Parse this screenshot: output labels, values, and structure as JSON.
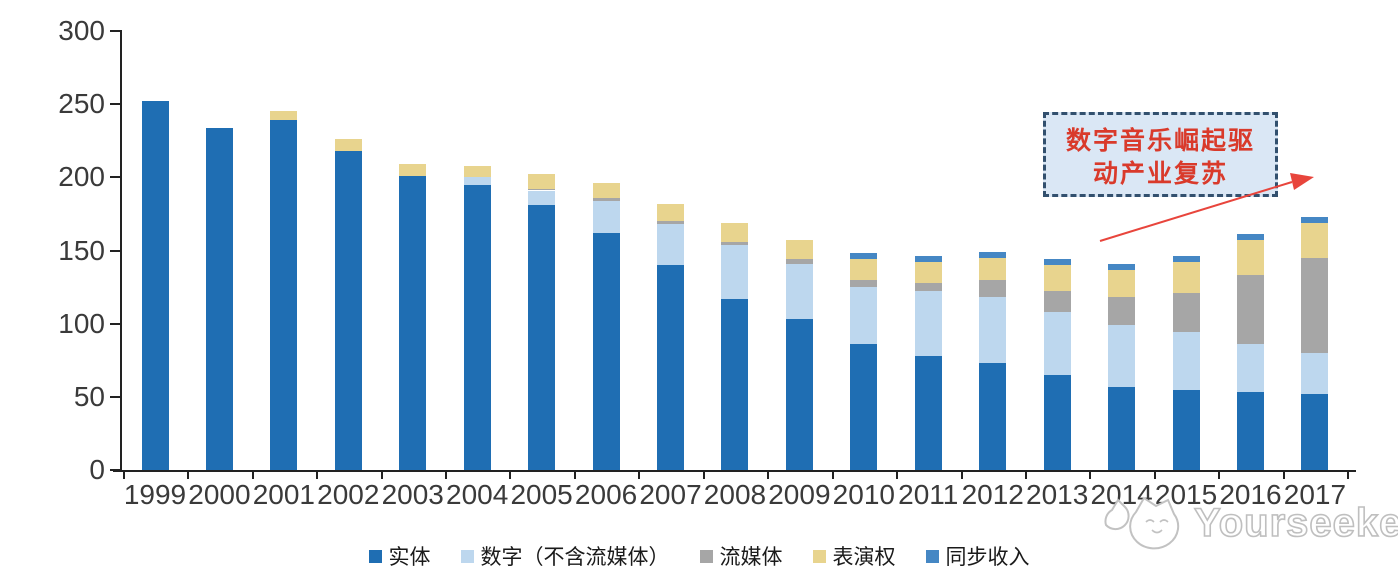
{
  "chart_data": {
    "type": "bar",
    "stacked": true,
    "title": "",
    "xlabel": "",
    "ylabel": "",
    "categories": [
      "1999",
      "2000",
      "2001",
      "2002",
      "2003",
      "2004",
      "2005",
      "2006",
      "2007",
      "2008",
      "2009",
      "2010",
      "2011",
      "2012",
      "2013",
      "2014",
      "2015",
      "2016",
      "2017"
    ],
    "series": [
      {
        "key": "physical",
        "name": "实体",
        "color": "#1F6EB3",
        "values": [
          252,
          234,
          239,
          218,
          201,
          195,
          181,
          162,
          140,
          117,
          103,
          86,
          78,
          73,
          65,
          57,
          55,
          53,
          52
        ]
      },
      {
        "key": "digital-ex-streaming",
        "name": "数字（不含流媒体）",
        "color": "#BDD7EE",
        "values": [
          0,
          0,
          0,
          0,
          0,
          5,
          10,
          22,
          28,
          37,
          38,
          39,
          44,
          45,
          43,
          42,
          39,
          33,
          28
        ]
      },
      {
        "key": "streaming",
        "name": "流媒体",
        "color": "#A6A6A6",
        "values": [
          0,
          0,
          0,
          0,
          0,
          0,
          1,
          2,
          2,
          2,
          3,
          5,
          6,
          12,
          14,
          19,
          27,
          47,
          65
        ]
      },
      {
        "key": "performance-rights",
        "name": "表演权",
        "color": "#E8D48E",
        "values": [
          0,
          0,
          6,
          8,
          8,
          8,
          10,
          10,
          12,
          13,
          13,
          14,
          14,
          15,
          18,
          19,
          21,
          24,
          24
        ]
      },
      {
        "key": "sync-revenue",
        "name": "同步收入",
        "color": "#4587C4",
        "values": [
          0,
          0,
          0,
          0,
          0,
          0,
          0,
          0,
          0,
          0,
          0,
          4,
          4,
          4,
          4,
          4,
          4,
          4,
          4
        ]
      }
    ],
    "ylim": [
      0,
      300
    ],
    "yticks": [
      0,
      50,
      100,
      150,
      200,
      250,
      300
    ],
    "grid": false,
    "legend_position": "bottom"
  },
  "annotation": {
    "line1": "数字音乐崛起驱",
    "line2": "动产业复苏",
    "text_color": "#D93A2B",
    "box_fill": "#DAE7F5",
    "box_border": "#32506E",
    "arrow_color": "#E8453C"
  },
  "watermark": {
    "text": "Yourseeker",
    "logo": "cat-face-logo",
    "color": "#c2c2c2"
  }
}
